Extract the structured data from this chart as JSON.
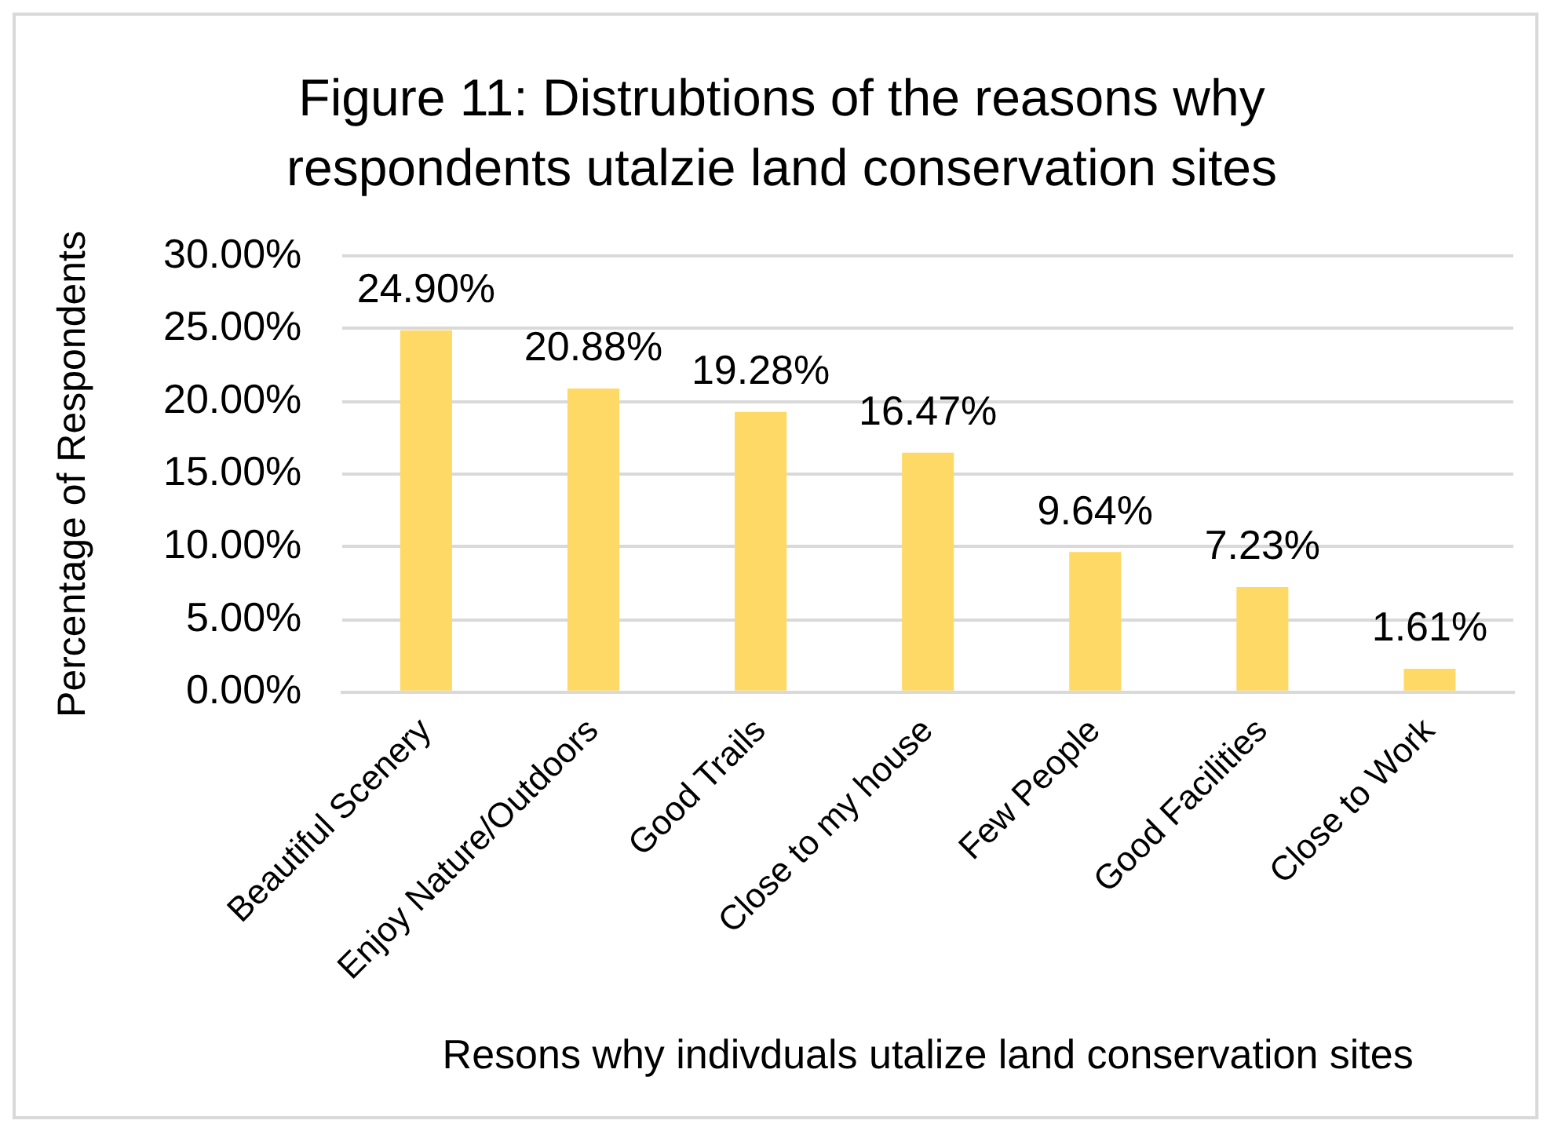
{
  "chart_data": {
    "type": "bar",
    "title": "Figure 11: Distrubtions of the reasons why respondents utalzie land conservation sites",
    "xlabel": "Resons why indivduals utalize land conservation sites",
    "ylabel": "Percentage of Respondents",
    "categories": [
      "Beautiful Scenery",
      "Enjoy Nature/Outdoors",
      "Good Trails",
      "Close to my house",
      "Few People",
      "Good Facilities",
      "Close to Work"
    ],
    "values": [
      24.9,
      20.88,
      19.28,
      16.47,
      9.64,
      7.23,
      1.61
    ],
    "value_labels": [
      "24.90%",
      "20.88%",
      "19.28%",
      "16.47%",
      "9.64%",
      "7.23%",
      "1.61%"
    ],
    "color": "#ffd966",
    "ylim": [
      0,
      30
    ],
    "yticks": [
      {
        "value": 0,
        "label": "0.00%"
      },
      {
        "value": 5,
        "label": "5.00%"
      },
      {
        "value": 10,
        "label": "10.00%"
      },
      {
        "value": 15,
        "label": "15.00%"
      },
      {
        "value": 20,
        "label": "20.00%"
      },
      {
        "value": 25,
        "label": "25.00%"
      },
      {
        "value": 30,
        "label": "30.00%"
      }
    ],
    "grid": "y"
  }
}
